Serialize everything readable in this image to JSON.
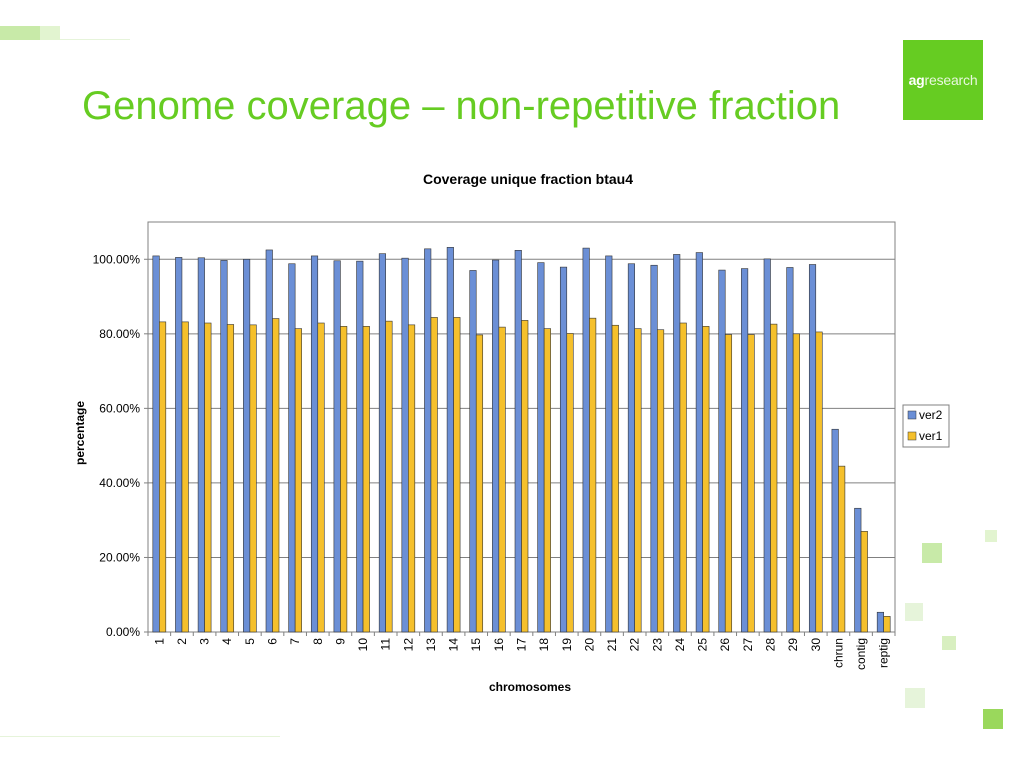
{
  "slide": {
    "title": "Genome coverage – non-repetitive fraction",
    "logo_bold": "ag",
    "logo_rest": "research",
    "accent_color": "#66cc22"
  },
  "chart_data": {
    "type": "bar",
    "title": "Coverage unique fraction btau4",
    "xlabel": "chromosomes",
    "ylabel": "percentage",
    "ylim": [
      0,
      1.1
    ],
    "yticks": [
      0,
      0.2,
      0.4,
      0.6,
      0.8,
      1.0
    ],
    "ytick_labels": [
      "0.00%",
      "20.00%",
      "40.00%",
      "60.00%",
      "80.00%",
      "100.00%"
    ],
    "grid": true,
    "legend_position": "right",
    "categories": [
      "1",
      "2",
      "3",
      "4",
      "5",
      "6",
      "7",
      "8",
      "9",
      "10",
      "11",
      "12",
      "13",
      "14",
      "15",
      "16",
      "17",
      "18",
      "19",
      "20",
      "21",
      "22",
      "23",
      "24",
      "25",
      "26",
      "27",
      "28",
      "29",
      "30",
      "chrun",
      "contig",
      "reptig"
    ],
    "series": [
      {
        "name": "ver2",
        "color": "#6b8fd6",
        "values": [
          1.009,
          1.005,
          1.004,
          0.997,
          1.0,
          1.025,
          0.988,
          1.009,
          0.996,
          0.995,
          1.015,
          1.003,
          1.028,
          1.032,
          0.97,
          0.998,
          1.024,
          0.991,
          0.979,
          1.03,
          1.009,
          0.988,
          0.984,
          1.013,
          1.018,
          0.971,
          0.975,
          1.001,
          0.978,
          0.986,
          0.544,
          0.332,
          0.053
        ]
      },
      {
        "name": "ver1",
        "color": "#f5c02c",
        "values": [
          0.832,
          0.832,
          0.829,
          0.825,
          0.824,
          0.841,
          0.814,
          0.829,
          0.82,
          0.82,
          0.834,
          0.824,
          0.844,
          0.844,
          0.797,
          0.818,
          0.836,
          0.814,
          0.801,
          0.842,
          0.823,
          0.814,
          0.811,
          0.829,
          0.82,
          0.798,
          0.798,
          0.826,
          0.8,
          0.805,
          0.445,
          0.27,
          0.042
        ]
      }
    ]
  }
}
